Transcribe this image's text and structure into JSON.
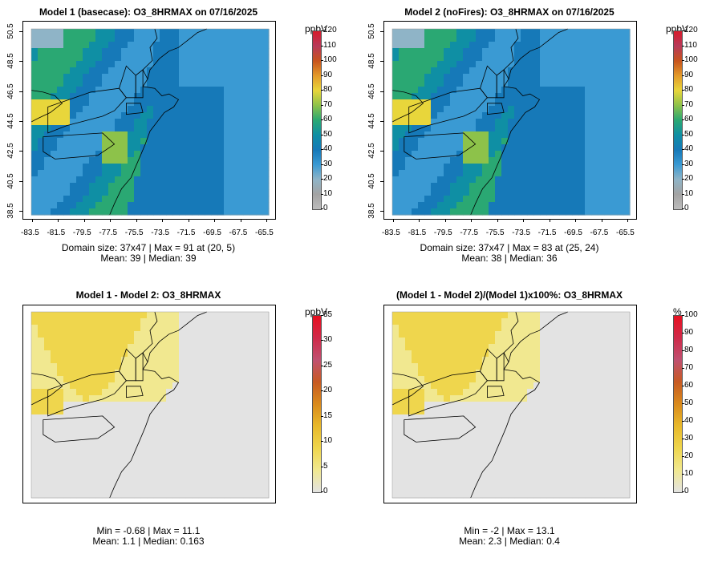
{
  "chart_data": [
    {
      "type": "heatmap",
      "title": "Model 1 (basecase): O3_8HRMAX on 07/16/2025",
      "variable": "O3_8HRMAX",
      "unit": "ppbV",
      "colorbar_range": [
        0,
        120
      ],
      "colorbar_ticks": [
        "0",
        "10",
        "20",
        "30",
        "40",
        "50",
        "60",
        "70",
        "80",
        "90",
        "100",
        "110",
        "120"
      ],
      "x_ticks": [
        "-83.5",
        "-81.5",
        "-79.5",
        "-77.5",
        "-75.5",
        "-73.5",
        "-71.5",
        "-69.5",
        "-67.5",
        "-65.5"
      ],
      "y_ticks": [
        "38.5",
        "40.5",
        "42.5",
        "44.5",
        "46.5",
        "48.5",
        "50.5"
      ],
      "xlim": [
        -84,
        -65
      ],
      "ylim": [
        38,
        51
      ],
      "stats_line1": "Domain size: 37x47 | Max = 91 at (20, 5)",
      "stats_line2": "Mean: 39 |  Median: 39"
    },
    {
      "type": "heatmap",
      "title": "Model 2 (noFires): O3_8HRMAX on 07/16/2025",
      "variable": "O3_8HRMAX",
      "unit": "ppbV",
      "colorbar_range": [
        0,
        120
      ],
      "colorbar_ticks": [
        "0",
        "10",
        "20",
        "30",
        "40",
        "50",
        "60",
        "70",
        "80",
        "90",
        "100",
        "110",
        "120"
      ],
      "x_ticks": [
        "-83.5",
        "-81.5",
        "-79.5",
        "-77.5",
        "-75.5",
        "-73.5",
        "-71.5",
        "-69.5",
        "-67.5",
        "-65.5"
      ],
      "y_ticks": [
        "38.5",
        "40.5",
        "42.5",
        "44.5",
        "46.5",
        "48.5",
        "50.5"
      ],
      "xlim": [
        -84,
        -65
      ],
      "ylim": [
        38,
        51
      ],
      "stats_line1": "Domain size: 37x47 | Max = 83 at (25, 24)",
      "stats_line2": "Mean: 38 |  Median: 36"
    },
    {
      "type": "heatmap",
      "title": "Model 1 - Model 2: O3_8HRMAX",
      "variable": "O3_8HRMAX",
      "unit": "ppbV",
      "colorbar_range": [
        0,
        35
      ],
      "colorbar_ticks": [
        "0",
        "5",
        "10",
        "15",
        "20",
        "25",
        "30",
        "35"
      ],
      "stats_line1": "Min = -0.68 | Max = 11.1",
      "stats_line2": "Mean: 1.1 |  Median: 0.163"
    },
    {
      "type": "heatmap",
      "title": "(Model 1 - Model 2)/(Model 1)x100%: O3_8HRMAX",
      "variable": "O3_8HRMAX",
      "unit": "%",
      "colorbar_range": [
        0,
        100
      ],
      "colorbar_ticks": [
        "0",
        "10",
        "20",
        "30",
        "40",
        "50",
        "60",
        "70",
        "80",
        "90",
        "100"
      ],
      "stats_line1": "Min = -2 | Max = 13.1",
      "stats_line2": "Mean: 2.3 |  Median: 0.4"
    }
  ],
  "colors": {
    "map_grey": "#c8c8c8",
    "ocean_blue": "#6fb2de",
    "border": "#000000",
    "diff_background": "#e4e4e4"
  }
}
